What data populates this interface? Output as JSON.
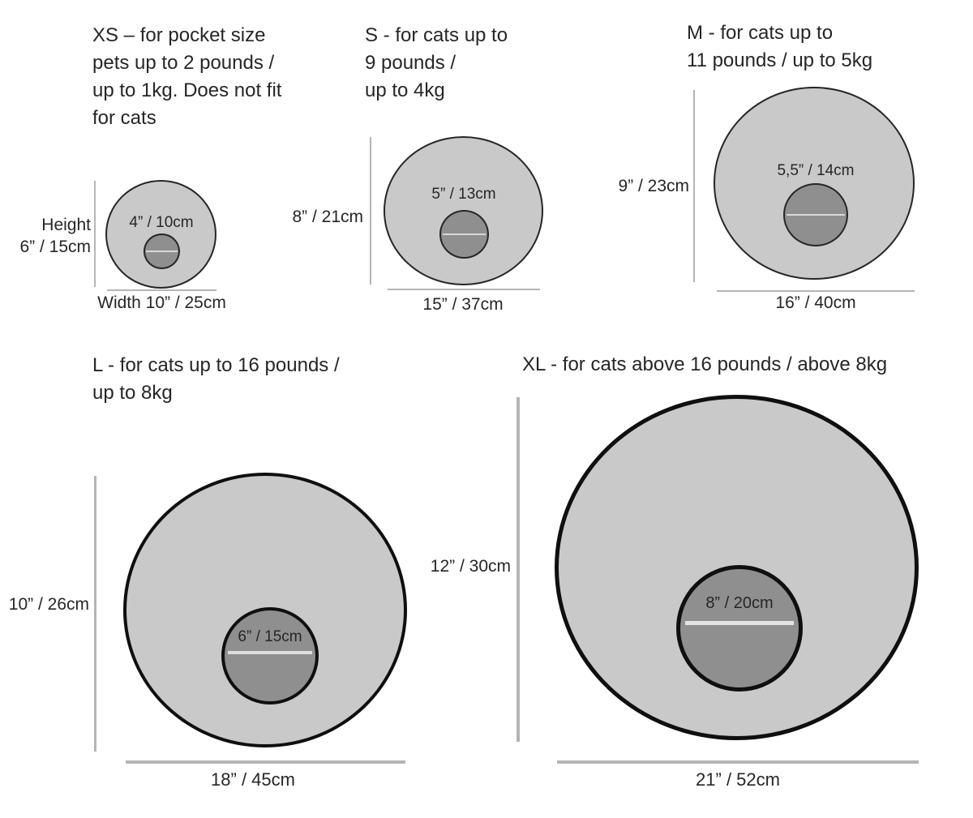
{
  "colors": {
    "outer_fill": "#c9c9c9",
    "inner_fill": "#8f8f8f",
    "outline_thin": "#262626",
    "outline_thick": "#0f0f0f",
    "dim_line": "#b5b5b5",
    "inner_divider": "#d9d9d9",
    "text": "#262626"
  },
  "sizes": {
    "xs": {
      "label": "XS",
      "title": "XS – for pocket size\npets up to 2 pounds /\nup to 1kg. Does not fit\nfor cats",
      "height_label": "Height\n6” / 15cm",
      "width_label": "Width 10” / 25cm",
      "inner_label": "4” / 10cm"
    },
    "s": {
      "label": "S",
      "title": "S - for cats up to\n9 pounds /\nup to 4kg",
      "height_label": "8” / 21cm",
      "width_label": "15” / 37cm",
      "inner_label": "5” / 13cm"
    },
    "m": {
      "label": "M",
      "title": "M - for cats up to\n11 pounds / up to 5kg",
      "height_label": "9” / 23cm",
      "width_label": "16” / 40cm",
      "inner_label": "5,5” / 14cm"
    },
    "l": {
      "label": "L",
      "title": "L - for cats up to 16 pounds /\nup to 8kg",
      "height_label": "10” / 26cm",
      "width_label": "18” / 45cm",
      "inner_label": "6” / 15cm"
    },
    "xl": {
      "label": "XL",
      "title": "XL - for cats above 16 pounds / above 8kg",
      "height_label": "12” / 30cm",
      "width_label": "21” / 52cm",
      "inner_label": "8” / 20cm"
    }
  }
}
